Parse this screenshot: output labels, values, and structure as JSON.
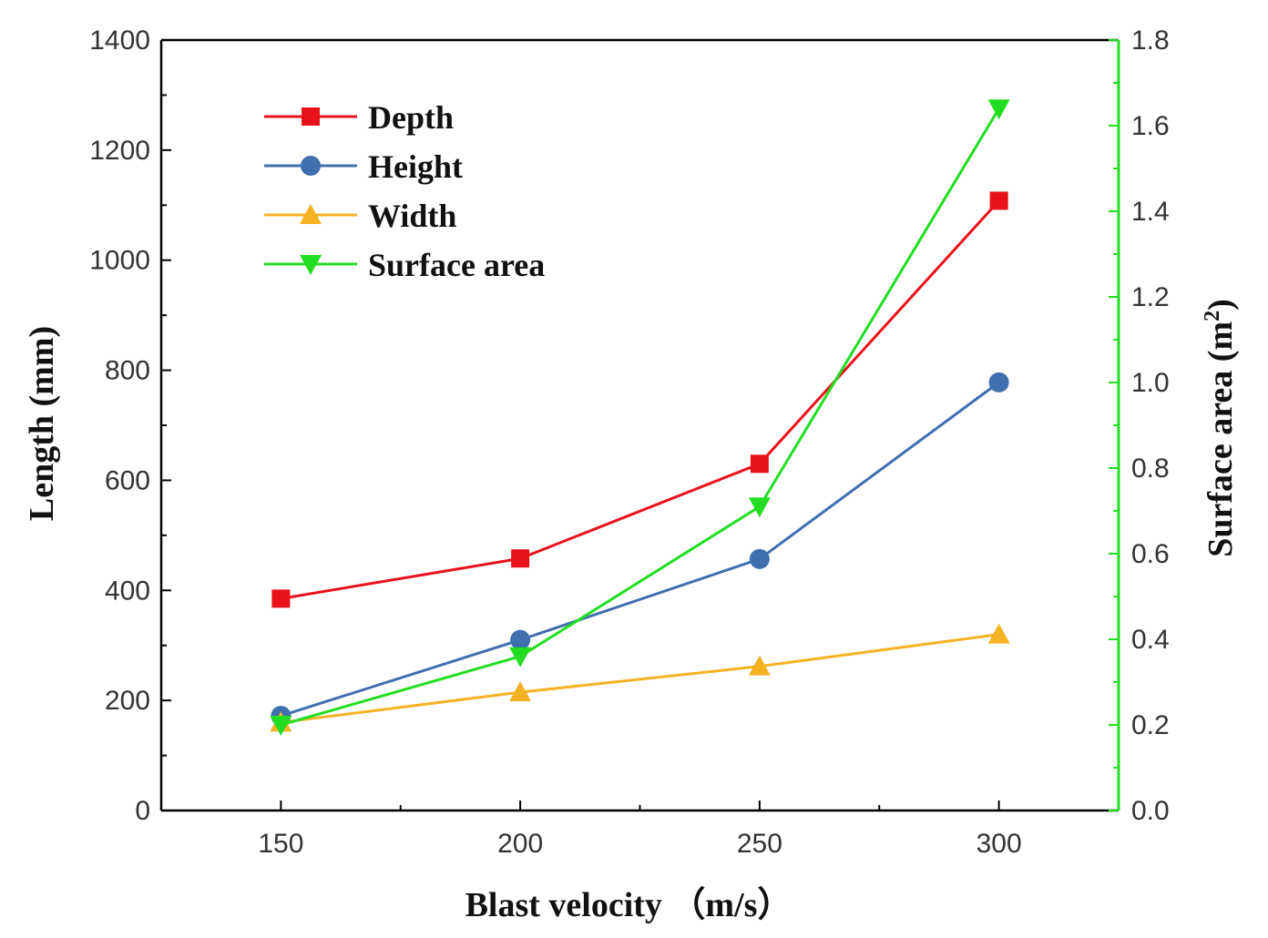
{
  "chart_data": {
    "type": "line",
    "x": [
      150,
      200,
      250,
      300
    ],
    "xlabel": "Blast velocity （m/s）",
    "ylabel_left": "Length (mm)",
    "ylabel_right": "Surface area (m",
    "ylabel_right_sup": "2",
    "ylabel_right_close": ")",
    "xlim": [
      125,
      325
    ],
    "ylim_left": [
      0,
      1400
    ],
    "ylim_right": [
      0.0,
      1.8
    ],
    "x_ticks": [
      "150",
      "200",
      "250",
      "300"
    ],
    "y_ticks_left": [
      "0",
      "200",
      "400",
      "600",
      "800",
      "1000",
      "1200",
      "1400"
    ],
    "y_ticks_right": [
      "0.0",
      "0.2",
      "0.4",
      "0.6",
      "0.8",
      "1.0",
      "1.2",
      "1.4",
      "1.6",
      "1.8"
    ],
    "right_axis_color": "#22dd22",
    "series": [
      {
        "name": "Depth",
        "axis": "left",
        "marker": "square",
        "color": "#e8121b",
        "values": [
          385,
          458,
          630,
          1108
        ]
      },
      {
        "name": "Height",
        "axis": "left",
        "marker": "circle",
        "color": "#3f6fae",
        "values": [
          172,
          310,
          457,
          778
        ]
      },
      {
        "name": "Width",
        "axis": "left",
        "marker": "triangle-up",
        "color": "#f5b323",
        "values": [
          160,
          215,
          262,
          320
        ]
      },
      {
        "name": "Surface area",
        "axis": "right",
        "marker": "triangle-down",
        "color": "#22dd22",
        "values": [
          0.2,
          0.36,
          0.71,
          1.64
        ]
      }
    ],
    "legend_position": "top-left"
  }
}
